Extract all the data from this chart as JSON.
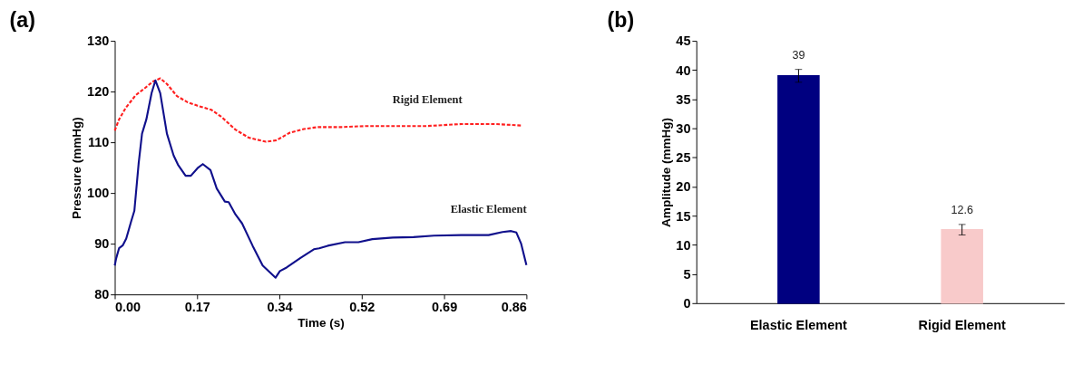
{
  "chart_data": [
    {
      "type": "line",
      "title": "(a)",
      "xlabel": "Time (s)",
      "ylabel": "Pressure (mmHg)",
      "xlim": [
        0,
        0.86
      ],
      "xticks": [
        {
          "value": 0,
          "label": "0.00"
        },
        {
          "value": 0.172,
          "label": "0.17"
        },
        {
          "value": 0.344,
          "label": "0.34"
        },
        {
          "value": 0.516,
          "label": "0.52"
        },
        {
          "value": 0.688,
          "label": "0.69"
        },
        {
          "value": 0.86,
          "label": "0.86"
        }
      ],
      "ylim": [
        80,
        130
      ],
      "yticks": [
        80,
        90,
        100,
        110,
        120,
        130
      ],
      "grid": false,
      "series": [
        {
          "name": "Rigid Element",
          "color": "#ff2020",
          "line_style": "dashed",
          "x": [
            0,
            0.009,
            0.023,
            0.044,
            0.062,
            0.08,
            0.095,
            0.109,
            0.13,
            0.152,
            0.173,
            0.202,
            0.223,
            0.252,
            0.28,
            0.316,
            0.338,
            0.366,
            0.395,
            0.424,
            0.474,
            0.524,
            0.581,
            0.653,
            0.724,
            0.796,
            0.849
          ],
          "values": [
            112.3,
            114.5,
            116.8,
            119.3,
            120.6,
            122.0,
            122.6,
            121.5,
            119.1,
            117.9,
            117.2,
            116.4,
            115.0,
            112.5,
            110.9,
            110.1,
            110.4,
            111.9,
            112.6,
            113.0,
            113.0,
            113.2,
            113.2,
            113.2,
            113.6,
            113.6,
            113.3
          ]
        },
        {
          "name": "Elastic Element",
          "color": "#10108c",
          "line_style": "solid",
          "x": [
            0,
            0.003,
            0.009,
            0.017,
            0.024,
            0.034,
            0.041,
            0.05,
            0.057,
            0.066,
            0.077,
            0.085,
            0.095,
            0.109,
            0.123,
            0.132,
            0.148,
            0.159,
            0.173,
            0.184,
            0.2,
            0.213,
            0.23,
            0.238,
            0.252,
            0.266,
            0.288,
            0.309,
            0.336,
            0.345,
            0.359,
            0.388,
            0.416,
            0.427,
            0.445,
            0.481,
            0.509,
            0.538,
            0.581,
            0.624,
            0.667,
            0.724,
            0.781,
            0.81,
            0.828,
            0.839,
            0.849,
            0.86
          ],
          "values": [
            85.7,
            87.1,
            89.1,
            89.7,
            91.0,
            94.3,
            96.5,
            105.9,
            111.7,
            114.5,
            119.7,
            122.2,
            119.7,
            111.7,
            107.4,
            105.6,
            103.4,
            103.4,
            104.9,
            105.7,
            104.5,
            100.9,
            98.3,
            98.2,
            95.8,
            94.0,
            89.6,
            85.7,
            83.3,
            84.6,
            85.3,
            87.2,
            88.9,
            89.1,
            89.6,
            90.3,
            90.3,
            90.9,
            91.2,
            91.3,
            91.6,
            91.7,
            91.7,
            92.3,
            92.5,
            92.2,
            90.0,
            85.8
          ]
        }
      ]
    },
    {
      "type": "bar",
      "title": "(b)",
      "ylabel": "Amplitude (mmHg)",
      "categories": [
        "Elastic Element",
        "Rigid Element"
      ],
      "values": [
        39,
        12.6
      ],
      "colors": [
        "#000080",
        "#f8caca"
      ],
      "errors": [
        1.1,
        0.9
      ],
      "ylim": [
        0,
        45
      ],
      "yticks": [
        0,
        5,
        10,
        15,
        20,
        25,
        30,
        35,
        40,
        45
      ],
      "grid": false,
      "data_labels": true
    }
  ]
}
